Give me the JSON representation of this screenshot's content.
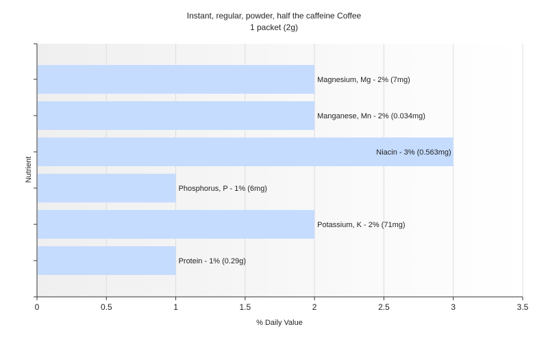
{
  "chart_data": {
    "type": "bar",
    "orientation": "horizontal",
    "title": "Instant, regular, powder, half the caffeine Coffee",
    "subtitle": "1 packet (2g)",
    "xlabel": "% Daily Value",
    "ylabel": "Nutrient",
    "xlim": [
      0,
      3.5
    ],
    "xticks": [
      "0",
      "0.5",
      "1",
      "1.5",
      "2",
      "2.5",
      "3",
      "3.5"
    ],
    "categories": [
      "Magnesium, Mg",
      "Manganese, Mn",
      "Niacin",
      "Phosphorus, P",
      "Potassium, K",
      "Protein"
    ],
    "values": [
      2,
      2,
      3,
      1,
      2,
      1
    ],
    "labels": [
      "Magnesium, Mg - 2% (7mg)",
      "Manganese, Mn - 2% (0.034mg)",
      "Niacin - 3% (0.563mg)",
      "Phosphorus, P - 1% (6mg)",
      "Potassium, K - 2% (71mg)",
      "Protein - 1% (0.29g)"
    ],
    "bar_color": "#c5dcff",
    "grid": true,
    "legend": "none"
  }
}
